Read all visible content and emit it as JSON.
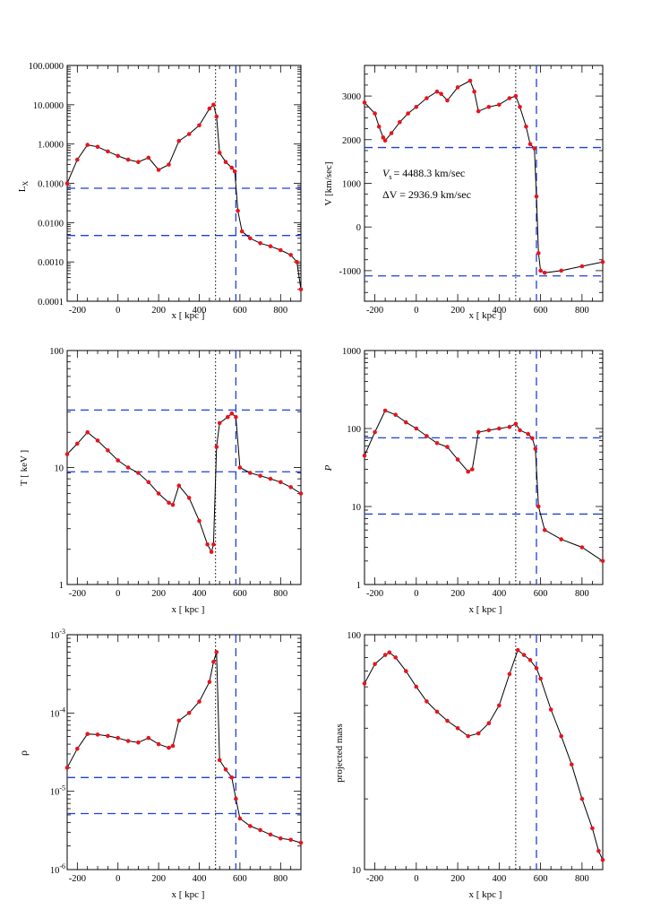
{
  "chart_data": [
    {
      "id": "lx",
      "type": "line",
      "scale": "log",
      "ylabel": "L_X",
      "ylabel_main": "L",
      "ylabel_sub": "X",
      "xlabel": "x [ kpc ]",
      "xlim": [
        -250,
        900
      ],
      "ylim": [
        0.0001,
        100
      ],
      "yticks": [
        "0.0001",
        "0.0010",
        "0.0100",
        "0.1000",
        "1.0000",
        "10.0000",
        "100.0000"
      ],
      "xticks": [
        "-200",
        "0",
        "200",
        "400",
        "600",
        "800"
      ],
      "hlines": [
        0.075,
        0.0047
      ],
      "vline_dashed": 580,
      "vline_dotted": 480,
      "x": [
        -250,
        -200,
        -150,
        -100,
        -50,
        0,
        50,
        100,
        150,
        200,
        250,
        300,
        350,
        400,
        450,
        470,
        485,
        500,
        530,
        560,
        575,
        590,
        610,
        650,
        700,
        750,
        800,
        850,
        880,
        900
      ],
      "y": [
        0.1,
        0.4,
        0.95,
        0.85,
        0.65,
        0.5,
        0.4,
        0.35,
        0.45,
        0.22,
        0.3,
        1.2,
        1.8,
        3,
        8,
        10,
        5,
        0.6,
        0.35,
        0.25,
        0.2,
        0.02,
        0.006,
        0.004,
        0.003,
        0.0025,
        0.002,
        0.0015,
        0.001,
        0.0002
      ],
      "annotations": []
    },
    {
      "id": "v",
      "type": "line",
      "scale": "linear",
      "ylabel": "V [km/sec]",
      "xlabel": "x [ kpc ]",
      "xlim": [
        -250,
        900
      ],
      "ylim": [
        -1700,
        3700
      ],
      "yticks": [
        "-1000",
        "0",
        "1000",
        "2000",
        "3000"
      ],
      "yticks_values": [
        -1000,
        0,
        1000,
        2000,
        3000
      ],
      "xticks": [
        "-200",
        "0",
        "200",
        "400",
        "600",
        "800"
      ],
      "hlines": [
        1820,
        -1120
      ],
      "vline_dashed": 580,
      "vline_dotted": 480,
      "x": [
        -250,
        -200,
        -180,
        -160,
        -150,
        -120,
        -80,
        -40,
        0,
        50,
        100,
        120,
        150,
        200,
        260,
        280,
        300,
        350,
        400,
        450,
        480,
        500,
        530,
        550,
        570,
        580,
        590,
        600,
        620,
        700,
        800,
        900
      ],
      "y": [
        2850,
        2600,
        2300,
        2050,
        1980,
        2150,
        2400,
        2600,
        2750,
        2950,
        3100,
        3050,
        2900,
        3200,
        3350,
        3100,
        2650,
        2750,
        2800,
        2950,
        3000,
        2750,
        2300,
        1900,
        1800,
        700,
        -600,
        -1000,
        -1050,
        -1000,
        -900,
        -800
      ],
      "annotations": [
        "V_s =   4488.3 km/sec",
        "ΔV =   2936.9 km/sec"
      ],
      "ann_vs_label": "V",
      "ann_vs_sub": "s",
      "ann_vs_value": "=   4488.3 km/sec",
      "ann_dv": "ΔV =   2936.9 km/sec"
    },
    {
      "id": "t",
      "type": "line",
      "scale": "log",
      "ylabel": "T [ keV ]",
      "xlabel": "x [ kpc ]",
      "xlim": [
        -250,
        900
      ],
      "ylim": [
        1,
        100
      ],
      "yticks": [
        "1",
        "10",
        "100"
      ],
      "xticks": [
        "-200",
        "0",
        "200",
        "400",
        "600",
        "800"
      ],
      "hlines": [
        31,
        9.2
      ],
      "vline_dashed": 580,
      "vline_dotted": 480,
      "x": [
        -250,
        -200,
        -150,
        -100,
        -50,
        0,
        50,
        100,
        150,
        200,
        250,
        270,
        300,
        350,
        400,
        440,
        460,
        470,
        485,
        500,
        540,
        560,
        580,
        600,
        650,
        700,
        750,
        800,
        850,
        900
      ],
      "y": [
        13,
        16,
        20,
        17,
        14,
        11.5,
        10,
        9,
        7.5,
        6,
        5,
        4.8,
        7,
        5.5,
        3.5,
        2.2,
        1.9,
        2.2,
        15,
        24,
        27,
        29,
        27,
        10,
        9,
        8.5,
        8,
        7.5,
        6.8,
        6
      ],
      "annotations": []
    },
    {
      "id": "p",
      "type": "line",
      "scale": "log",
      "ylabel": "P",
      "xlabel": "x [ kpc ]",
      "xlim": [
        -250,
        900
      ],
      "ylim": [
        1,
        1000
      ],
      "yticks": [
        "1",
        "10",
        "100",
        "1000"
      ],
      "xticks": [
        "-200",
        "0",
        "200",
        "400",
        "600",
        "800"
      ],
      "hlines": [
        76,
        8
      ],
      "vline_dashed": 580,
      "vline_dotted": 480,
      "x": [
        -250,
        -200,
        -150,
        -100,
        -50,
        0,
        50,
        100,
        150,
        200,
        250,
        270,
        300,
        350,
        400,
        450,
        480,
        500,
        540,
        560,
        575,
        590,
        620,
        700,
        800,
        900
      ],
      "y": [
        45,
        90,
        170,
        150,
        120,
        100,
        80,
        65,
        58,
        40,
        28,
        30,
        90,
        95,
        100,
        105,
        115,
        95,
        85,
        75,
        55,
        10,
        5,
        3.8,
        3,
        2
      ],
      "annotations": []
    },
    {
      "id": "rho",
      "type": "line",
      "scale": "log",
      "ylabel": "ρ",
      "xlabel": "x [ kpc ]",
      "xlim": [
        -250,
        900
      ],
      "ylim": [
        1e-06,
        0.001
      ],
      "yticks": [
        "10",
        "10",
        "10",
        "10"
      ],
      "ytick_exps": [
        "-6",
        "-5",
        "-4",
        "-3"
      ],
      "xticks": [
        "-200",
        "0",
        "200",
        "400",
        "600",
        "800"
      ],
      "hlines": [
        1.5e-05,
        5.2e-06
      ],
      "vline_dashed": 580,
      "vline_dotted": 480,
      "x": [
        -250,
        -200,
        -150,
        -100,
        -50,
        0,
        50,
        100,
        150,
        200,
        250,
        270,
        300,
        350,
        400,
        450,
        470,
        485,
        500,
        530,
        560,
        580,
        600,
        650,
        700,
        750,
        800,
        850,
        900
      ],
      "y": [
        2e-05,
        3.5e-05,
        5.4e-05,
        5.3e-05,
        5.1e-05,
        4.8e-05,
        4.4e-05,
        4.2e-05,
        4.8e-05,
        4e-05,
        3.6e-05,
        3.8e-05,
        8e-05,
        0.0001,
        0.00014,
        0.00025,
        0.00045,
        0.0006,
        2.5e-05,
        1.9e-05,
        1.5e-05,
        8e-06,
        4.5e-06,
        3.6e-06,
        3.2e-06,
        2.8e-06,
        2.5e-06,
        2.4e-06,
        2.2e-06
      ],
      "annotations": []
    },
    {
      "id": "mass",
      "type": "line",
      "scale": "log",
      "ylabel": "projected mass",
      "xlabel": "x [ kpc ]",
      "xlim": [
        -250,
        900
      ],
      "ylim": [
        10,
        100
      ],
      "yticks": [
        "10",
        "100"
      ],
      "xticks": [
        "-200",
        "0",
        "200",
        "400",
        "600",
        "800"
      ],
      "hlines": [],
      "vline_dashed": 580,
      "vline_dotted": 480,
      "x": [
        -250,
        -200,
        -150,
        -130,
        -100,
        -50,
        0,
        50,
        100,
        150,
        200,
        250,
        300,
        350,
        400,
        450,
        490,
        520,
        550,
        580,
        600,
        650,
        700,
        750,
        800,
        850,
        880,
        900
      ],
      "y": [
        62,
        75,
        82,
        84,
        80,
        70,
        60,
        52,
        47,
        43,
        40,
        37,
        38,
        42,
        50,
        68,
        86,
        82,
        78,
        72,
        65,
        48,
        37,
        28,
        20,
        15,
        12,
        11
      ],
      "annotations": []
    }
  ]
}
